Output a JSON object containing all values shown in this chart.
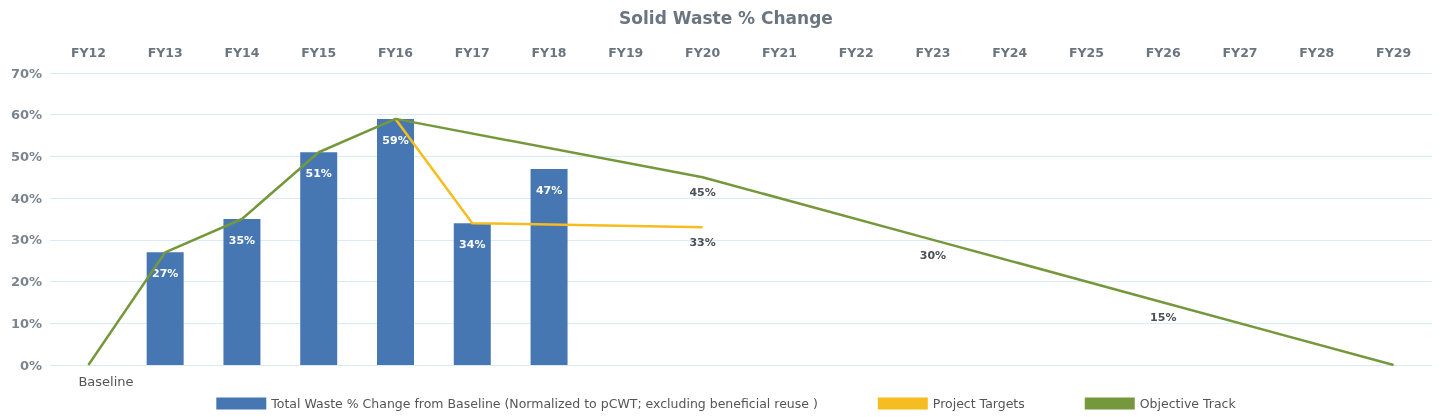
{
  "chart_data": {
    "type": "bar",
    "title": "Solid Waste % Change",
    "categories": [
      "FY12",
      "FY13",
      "FY14",
      "FY15",
      "FY16",
      "FY17",
      "FY18",
      "FY19",
      "FY20",
      "FY21",
      "FY22",
      "FY23",
      "FY24",
      "FY25",
      "FY26",
      "FY27",
      "FY28",
      "FY29"
    ],
    "series": [
      {
        "name": "Total Waste % Change from Baseline (Normalized to pCWT; excluding beneficial reuse )",
        "color": "#4677b3",
        "values": [
          null,
          27,
          35,
          51,
          59,
          34,
          47,
          null,
          null,
          null,
          null,
          null,
          null,
          null,
          null,
          null,
          null,
          null
        ],
        "value_labels": [
          null,
          "27%",
          "35%",
          "51%",
          "59%",
          "34%",
          "47%",
          null,
          null,
          null,
          null,
          null,
          null,
          null,
          null,
          null,
          null,
          null
        ]
      },
      {
        "name": "Project Targets",
        "type": "line",
        "color": "#f5bd1f",
        "values": [
          null,
          null,
          null,
          null,
          59,
          34,
          null,
          null,
          33,
          null,
          null,
          null,
          null,
          null,
          null,
          null,
          null,
          null
        ],
        "value_labels": [
          null,
          null,
          null,
          null,
          null,
          null,
          null,
          null,
          "33%",
          null,
          null,
          null,
          null,
          null,
          null,
          null,
          null,
          null
        ]
      },
      {
        "name": "Objective Track",
        "type": "line",
        "color": "#76983c",
        "values": [
          0,
          27,
          35,
          51,
          59,
          null,
          null,
          null,
          45,
          null,
          null,
          30,
          null,
          null,
          15,
          null,
          null,
          0
        ],
        "value_labels": [
          null,
          null,
          null,
          null,
          null,
          null,
          null,
          null,
          "45%",
          null,
          null,
          "30%",
          null,
          null,
          "15%",
          null,
          null,
          null
        ]
      }
    ],
    "ylim": [
      0,
      70
    ],
    "yticks": [
      {
        "value": 0,
        "label": "0%"
      },
      {
        "value": 10,
        "label": "10%"
      },
      {
        "value": 20,
        "label": "20%"
      },
      {
        "value": 30,
        "label": "30%"
      },
      {
        "value": 40,
        "label": "40%"
      },
      {
        "value": 50,
        "label": "50%"
      },
      {
        "value": 60,
        "label": "60%"
      },
      {
        "value": 70,
        "label": "70%"
      }
    ],
    "grid": "y",
    "legend": "bottom",
    "marker": "none",
    "annotations": [
      {
        "text": "Baseline",
        "x": "FY12",
        "y": 0
      }
    ]
  }
}
